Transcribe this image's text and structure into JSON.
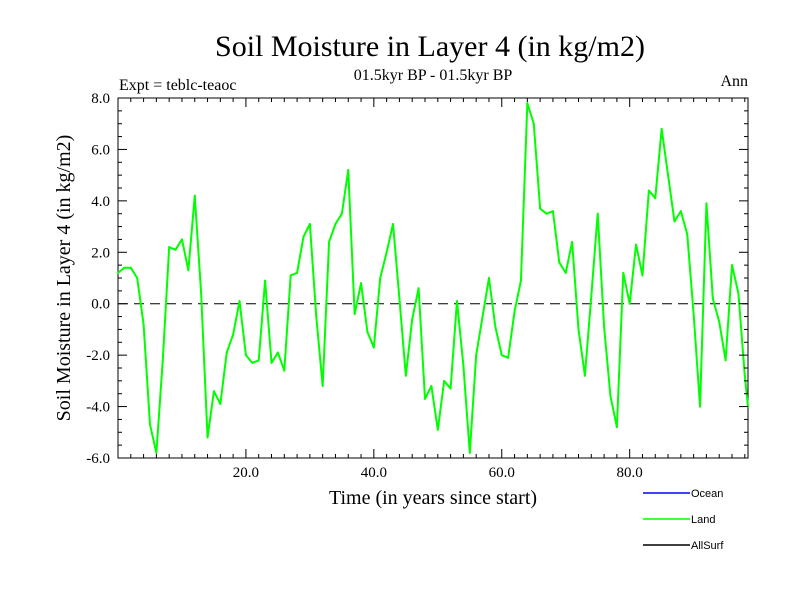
{
  "chart_data": {
    "type": "line",
    "title": "Soil Moisture in Layer 4 (in kg/m2)",
    "subtitle": "01.5kyr BP - 01.5kyr BP",
    "expt_label": "Expt = teblc-teaoc",
    "season_label": "Ann",
    "xlabel": "Time (in years since start)",
    "ylabel": "Soil Moisture in Layer 4 (in kg/m2)",
    "xlim": [
      0,
      98.5
    ],
    "ylim": [
      -6,
      8
    ],
    "xticks": [
      20,
      40,
      60,
      80
    ],
    "xtick_labels": [
      "20.0",
      "40.0",
      "60.0",
      "80.0"
    ],
    "yticks": [
      -6,
      -4,
      -2,
      0,
      2,
      4,
      6,
      8
    ],
    "ytick_labels": [
      "-6.0",
      "-4.0",
      "-2.0",
      "0.0",
      "2.0",
      "4.0",
      "6.0",
      "8.0"
    ],
    "zero_line": 0,
    "legend": [
      {
        "name": "Ocean",
        "color": "#0000ff"
      },
      {
        "name": "Land",
        "color": "#00ff00"
      },
      {
        "name": "AllSurf",
        "color": "#000000"
      }
    ],
    "series": [
      {
        "name": "Land",
        "color": "#00ff00",
        "x": [
          0,
          1,
          2,
          3,
          4,
          5,
          6,
          7,
          8,
          9,
          10,
          11,
          12,
          13,
          14,
          15,
          16,
          17,
          18,
          19,
          20,
          21,
          22,
          23,
          24,
          25,
          26,
          27,
          28,
          29,
          30,
          31,
          32,
          33,
          34,
          35,
          36,
          37,
          38,
          39,
          40,
          41,
          42,
          43,
          44,
          45,
          46,
          47,
          48,
          49,
          50,
          51,
          52,
          53,
          54,
          55,
          56,
          57,
          58,
          59,
          60,
          61,
          62,
          63,
          64,
          65,
          66,
          67,
          68,
          69,
          70,
          71,
          72,
          73,
          74,
          75,
          76,
          77,
          78,
          79,
          80,
          81,
          82,
          83,
          84,
          85,
          86,
          87,
          88,
          89,
          90,
          91,
          92,
          93,
          94,
          95,
          96,
          97,
          98,
          98.5
        ],
        "values": [
          1.2,
          1.4,
          1.4,
          1.0,
          -0.8,
          -4.7,
          -5.8,
          -2.2,
          2.2,
          2.1,
          2.5,
          1.3,
          4.2,
          0.4,
          -5.2,
          -3.4,
          -3.9,
          -1.9,
          -1.2,
          0.1,
          -2.0,
          -2.3,
          -2.2,
          0.9,
          -2.3,
          -1.9,
          -2.6,
          1.1,
          1.2,
          2.6,
          3.1,
          -0.5,
          -3.2,
          2.4,
          3.1,
          3.5,
          5.2,
          -0.4,
          0.8,
          -1.1,
          -1.7,
          1.0,
          2.0,
          3.1,
          0.2,
          -2.8,
          -0.6,
          0.6,
          -3.7,
          -3.2,
          -4.9,
          -3.0,
          -3.3,
          0.1,
          -2.4,
          -5.8,
          -2.0,
          -0.5,
          1.0,
          -0.9,
          -2.0,
          -2.1,
          -0.3,
          0.9,
          7.8,
          7.0,
          3.7,
          3.5,
          3.6,
          1.6,
          1.2,
          2.4,
          -1.0,
          -2.8,
          0.3,
          3.5,
          -0.9,
          -3.6,
          -4.8,
          1.2,
          0.0,
          2.3,
          1.1,
          4.4,
          4.1,
          6.8,
          5.0,
          3.2,
          3.6,
          2.7,
          -0.4,
          -4.0,
          3.9,
          0.2,
          -0.7,
          -2.2,
          1.5,
          0.4,
          -2.8,
          -4.0
        ]
      }
    ]
  }
}
